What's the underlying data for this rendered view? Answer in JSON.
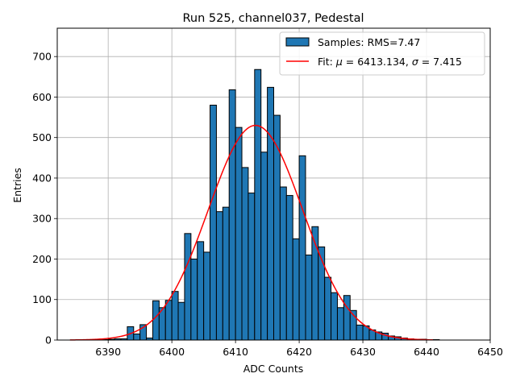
{
  "chart_data": {
    "type": "bar",
    "title": "Run 525, channel037, Pedestal",
    "xlabel": "ADC Counts",
    "ylabel": "Entries",
    "xlim": [
      6382,
      6450
    ],
    "ylim": [
      0,
      770
    ],
    "xticks": [
      6390,
      6400,
      6410,
      6420,
      6430,
      6440,
      6450
    ],
    "yticks": [
      0,
      100,
      200,
      300,
      400,
      500,
      600,
      700
    ],
    "grid": true,
    "legend_position": "top-right",
    "bin_width": 1,
    "bins": [
      {
        "x": 6388,
        "y": 0
      },
      {
        "x": 6389,
        "y": 1
      },
      {
        "x": 6390,
        "y": 2
      },
      {
        "x": 6391,
        "y": 3
      },
      {
        "x": 6392,
        "y": 3
      },
      {
        "x": 6393,
        "y": 33
      },
      {
        "x": 6394,
        "y": 15
      },
      {
        "x": 6395,
        "y": 38
      },
      {
        "x": 6396,
        "y": 5
      },
      {
        "x": 6397,
        "y": 97
      },
      {
        "x": 6398,
        "y": 80
      },
      {
        "x": 6399,
        "y": 98
      },
      {
        "x": 6400,
        "y": 120
      },
      {
        "x": 6401,
        "y": 93
      },
      {
        "x": 6402,
        "y": 263
      },
      {
        "x": 6403,
        "y": 200
      },
      {
        "x": 6404,
        "y": 243
      },
      {
        "x": 6405,
        "y": 217
      },
      {
        "x": 6406,
        "y": 580
      },
      {
        "x": 6407,
        "y": 317
      },
      {
        "x": 6408,
        "y": 328
      },
      {
        "x": 6409,
        "y": 618
      },
      {
        "x": 6410,
        "y": 525
      },
      {
        "x": 6411,
        "y": 426
      },
      {
        "x": 6412,
        "y": 363
      },
      {
        "x": 6413,
        "y": 668
      },
      {
        "x": 6414,
        "y": 464
      },
      {
        "x": 6415,
        "y": 624
      },
      {
        "x": 6416,
        "y": 555
      },
      {
        "x": 6417,
        "y": 378
      },
      {
        "x": 6418,
        "y": 357
      },
      {
        "x": 6419,
        "y": 250
      },
      {
        "x": 6420,
        "y": 455
      },
      {
        "x": 6421,
        "y": 210
      },
      {
        "x": 6422,
        "y": 280
      },
      {
        "x": 6423,
        "y": 230
      },
      {
        "x": 6424,
        "y": 155
      },
      {
        "x": 6425,
        "y": 117
      },
      {
        "x": 6426,
        "y": 80
      },
      {
        "x": 6427,
        "y": 110
      },
      {
        "x": 6428,
        "y": 73
      },
      {
        "x": 6429,
        "y": 37
      },
      {
        "x": 6430,
        "y": 35
      },
      {
        "x": 6431,
        "y": 25
      },
      {
        "x": 6432,
        "y": 20
      },
      {
        "x": 6433,
        "y": 17
      },
      {
        "x": 6434,
        "y": 10
      },
      {
        "x": 6435,
        "y": 8
      },
      {
        "x": 6436,
        "y": 5
      },
      {
        "x": 6437,
        "y": 3
      },
      {
        "x": 6438,
        "y": 2
      },
      {
        "x": 6439,
        "y": 2
      },
      {
        "x": 6440,
        "y": 1
      },
      {
        "x": 6441,
        "y": 1
      }
    ],
    "fit": {
      "mu": 6413.134,
      "sigma": 7.415,
      "amplitude": 530,
      "x_range": [
        6384,
        6441
      ]
    },
    "series": [
      {
        "name": "Samples: RMS=7.47",
        "type": "histogram",
        "color": "#1f77b4",
        "edgecolor": "#000000"
      },
      {
        "name": "Fit: μ = 6413.134, σ = 7.415",
        "type": "line",
        "color": "#ff0000"
      }
    ]
  },
  "legend": {
    "hist_label_prefix": "Samples: RMS=7.47",
    "fit_label_prefix": "Fit: ",
    "fit_mu_symbol": "μ",
    "fit_mu_value": " = 6413.134, ",
    "fit_sigma_symbol": "σ",
    "fit_sigma_value": " = 7.415"
  }
}
